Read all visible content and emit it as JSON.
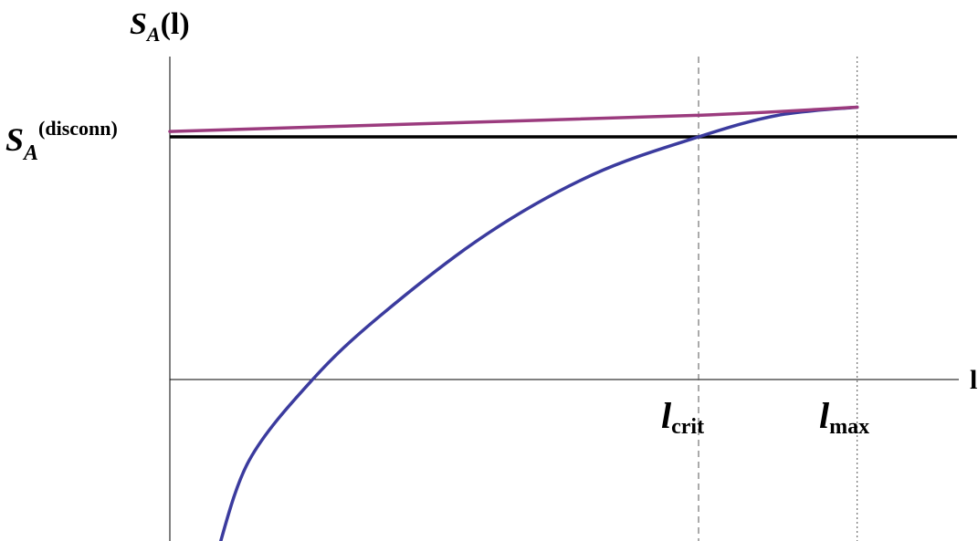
{
  "chart_data": {
    "type": "line",
    "ylabel": {
      "main": "S",
      "sub": "A",
      "rest": "(l)"
    },
    "xlabel": "l",
    "y_level_label": {
      "main": "S",
      "sub": "A",
      "sup": "(disconn)"
    },
    "x_markers": [
      {
        "main": "l",
        "sub": "crit",
        "x": 1.0,
        "style": "dashed"
      },
      {
        "main": "l",
        "sub": "max",
        "x": 1.3,
        "style": "dotted"
      }
    ],
    "xlim": [
      0,
      1.5
    ],
    "ylim": [
      -0.35,
      0.65
    ],
    "horizontal_line": {
      "y": 0.45,
      "color": "#000000"
    },
    "series": [
      {
        "color": "#3b3b9e",
        "points": [
          [
            0.09,
            -0.32
          ],
          [
            0.15,
            -0.15
          ],
          [
            0.27,
            0.0
          ],
          [
            0.4,
            0.12
          ],
          [
            0.6,
            0.27
          ],
          [
            0.8,
            0.38
          ],
          [
            1.0,
            0.45
          ],
          [
            1.15,
            0.49
          ],
          [
            1.3,
            0.505
          ]
        ]
      },
      {
        "color": "#9b3b7e",
        "points": [
          [
            0.0,
            0.46
          ],
          [
            0.5,
            0.475
          ],
          [
            1.0,
            0.49
          ],
          [
            1.3,
            0.505
          ]
        ]
      }
    ]
  }
}
